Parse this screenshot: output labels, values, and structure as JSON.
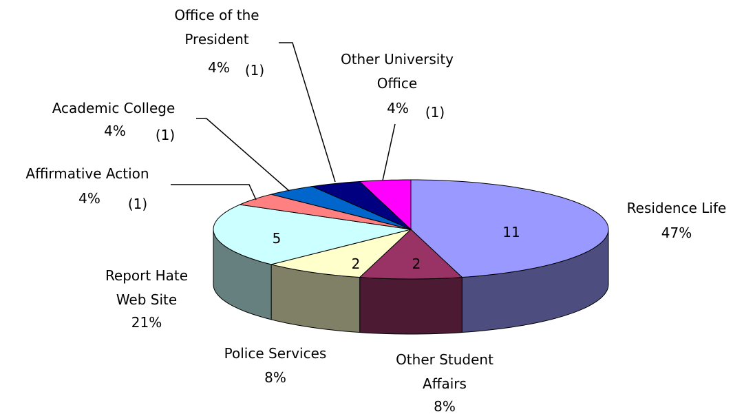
{
  "chart_data": {
    "type": "pie3d",
    "categories": [
      "Residence Life",
      "Other Student Affairs",
      "Police Services",
      "Report Hate Web Site",
      "Affirmative Action",
      "Academic College",
      "Office of the President",
      "Other University Office"
    ],
    "values": [
      11,
      2,
      2,
      5,
      1,
      1,
      1,
      1
    ],
    "value_labels": [
      "11",
      "2",
      "2",
      "5",
      "(1)",
      "(1)",
      "(1)",
      "(1)"
    ],
    "percentages": [
      47,
      8,
      8,
      21,
      4,
      4,
      4,
      4
    ],
    "percentage_labels": [
      "47%",
      "8%",
      "8%",
      "21%",
      "4%",
      "4%",
      "4%",
      "4%"
    ],
    "colors": [
      "#9999ff",
      "#993366",
      "#ffffcc",
      "#ccffff",
      "#ff8080",
      "#0066cc",
      "#000080",
      "#ff00ff"
    ]
  }
}
